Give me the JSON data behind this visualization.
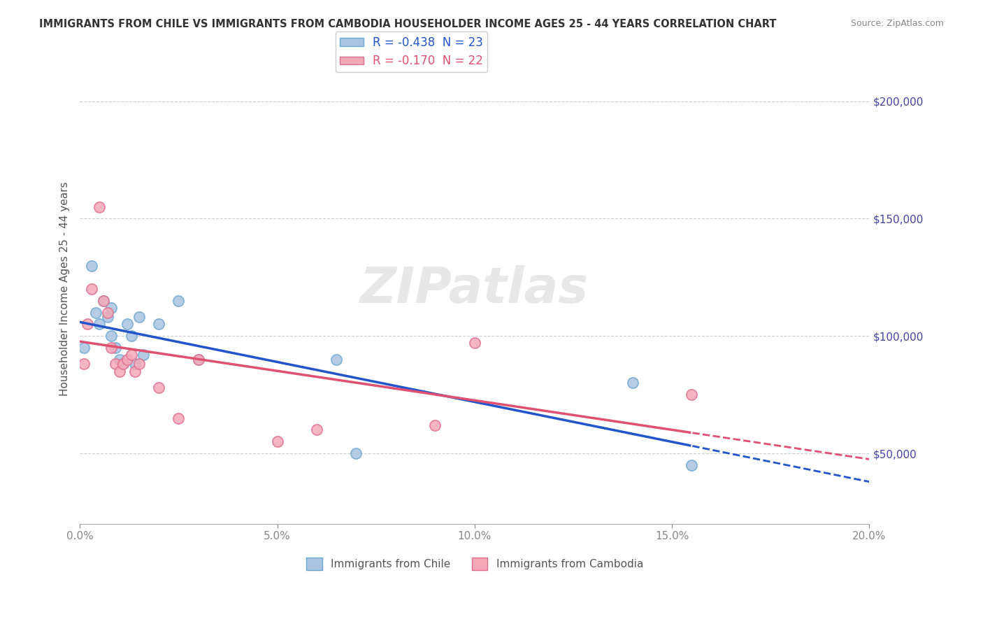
{
  "title": "IMMIGRANTS FROM CHILE VS IMMIGRANTS FROM CAMBODIA HOUSEHOLDER INCOME AGES 25 - 44 YEARS CORRELATION CHART",
  "source": "Source: ZipAtlas.com",
  "xlabel": "",
  "ylabel": "Householder Income Ages 25 - 44 years",
  "background_color": "#ffffff",
  "watermark": "ZIPatlas",
  "chile_color": "#a8c4e0",
  "chile_edge_color": "#6fa8d0",
  "cambodia_color": "#f4a8b8",
  "cambodia_edge_color": "#e07090",
  "chile_R": -0.438,
  "chile_N": 23,
  "cambodia_R": -0.17,
  "cambodia_N": 22,
  "chile_line_color": "#2255cc",
  "cambodia_line_color": "#e05070",
  "grid_color": "#cccccc",
  "axis_label_color": "#4444aa",
  "ytick_labels": [
    "$50,000",
    "$100,000",
    "$150,000",
    "$200,000"
  ],
  "ytick_values": [
    50000,
    100000,
    150000,
    200000
  ],
  "xlim": [
    0.0,
    0.2
  ],
  "ylim": [
    20000,
    220000
  ],
  "chile_x": [
    0.001,
    0.003,
    0.004,
    0.005,
    0.006,
    0.007,
    0.008,
    0.008,
    0.009,
    0.01,
    0.011,
    0.012,
    0.013,
    0.014,
    0.015,
    0.016,
    0.02,
    0.025,
    0.03,
    0.065,
    0.07,
    0.14,
    0.155
  ],
  "chile_y": [
    95000,
    130000,
    110000,
    105000,
    115000,
    108000,
    112000,
    100000,
    95000,
    90000,
    88000,
    105000,
    100000,
    88000,
    108000,
    92000,
    105000,
    115000,
    90000,
    90000,
    50000,
    80000,
    45000
  ],
  "cambodia_x": [
    0.001,
    0.002,
    0.003,
    0.005,
    0.006,
    0.007,
    0.008,
    0.009,
    0.01,
    0.011,
    0.012,
    0.013,
    0.014,
    0.015,
    0.02,
    0.025,
    0.03,
    0.05,
    0.06,
    0.09,
    0.1,
    0.155
  ],
  "cambodia_y": [
    88000,
    105000,
    120000,
    155000,
    115000,
    110000,
    95000,
    88000,
    85000,
    88000,
    90000,
    92000,
    85000,
    88000,
    78000,
    65000,
    90000,
    55000,
    60000,
    62000,
    97000,
    75000
  ]
}
